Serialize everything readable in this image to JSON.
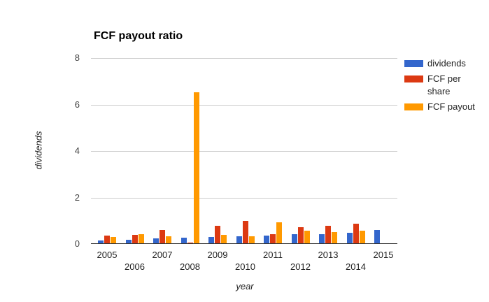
{
  "chart_data": {
    "type": "bar",
    "title": "FCF payout ratio",
    "xlabel": "year",
    "ylabel": "dividends",
    "ylim": [
      0,
      8
    ],
    "yticks": [
      0,
      2,
      4,
      6,
      8
    ],
    "grid": true,
    "legend_position": "right",
    "categories": [
      "2005",
      "2006",
      "2007",
      "2008",
      "2009",
      "2010",
      "2011",
      "2012",
      "2013",
      "2014",
      "2015"
    ],
    "series": [
      {
        "name": "dividends",
        "color": "#3366cc",
        "values": [
          0.13,
          0.15,
          0.2,
          0.25,
          0.26,
          0.29,
          0.34,
          0.39,
          0.4,
          0.44,
          0.56
        ]
      },
      {
        "name": "FCF per share",
        "color": "#dc3912",
        "values": [
          0.33,
          0.35,
          0.57,
          0.04,
          0.74,
          0.95,
          0.38,
          0.69,
          0.75,
          0.83,
          0
        ]
      },
      {
        "name": "FCF payout",
        "color": "#ff9900",
        "values": [
          0.27,
          0.39,
          0.31,
          6.49,
          0.36,
          0.3,
          0.89,
          0.54,
          0.48,
          0.54,
          0
        ]
      }
    ],
    "colors": {
      "gridline": "#cccccc",
      "baseline": "#333333",
      "tick_text": "#444444",
      "category_text": "#222222",
      "title_text": "#000000"
    }
  }
}
